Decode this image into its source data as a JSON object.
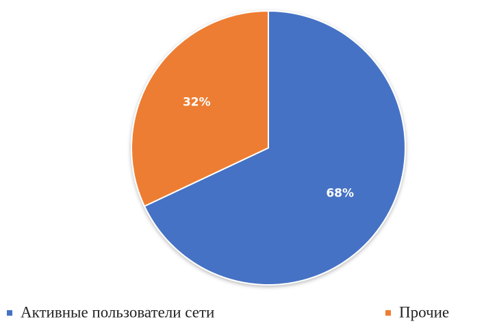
{
  "chart_data": {
    "type": "pie",
    "title": "",
    "slices": [
      {
        "label": "Активные пользователи сети",
        "value": 68,
        "display": "68%",
        "color": "#4472C4"
      },
      {
        "label": "Прочие",
        "value": 32,
        "display": "32%",
        "color": "#ED7D31"
      }
    ],
    "legend": "bottom",
    "data_labels": "inside"
  }
}
